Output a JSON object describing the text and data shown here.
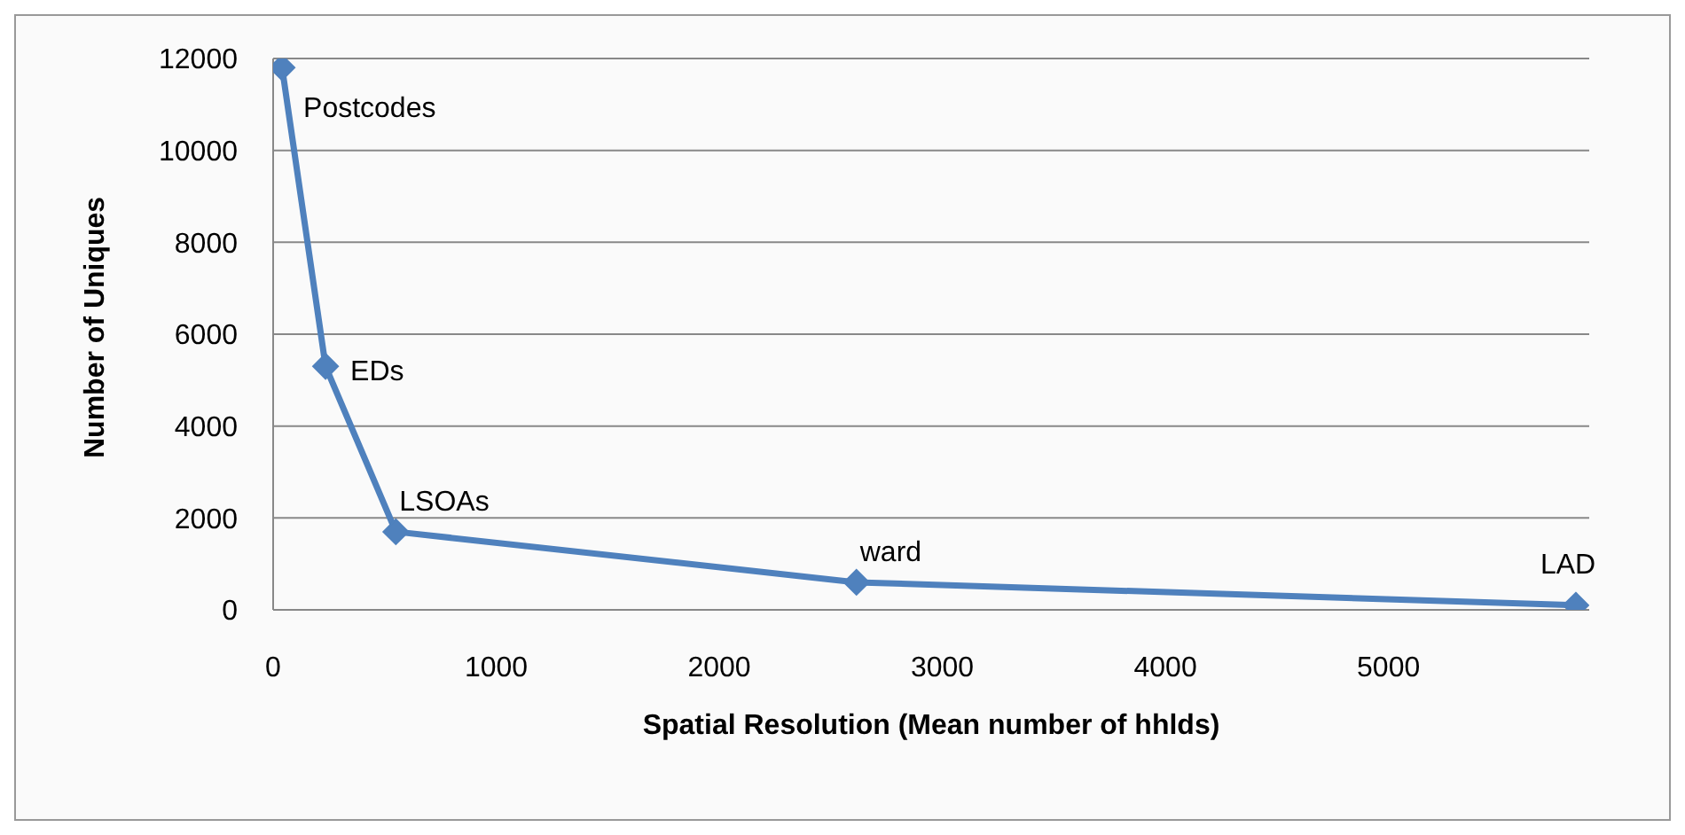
{
  "chart_data": {
    "type": "line",
    "xlabel": "Spatial Resolution (Mean number of hhlds)",
    "ylabel": "Number of Uniques",
    "x": [
      40,
      235,
      550,
      2615,
      5840
    ],
    "series": [
      {
        "color": "#4f81bd",
        "values": [
          11800,
          5300,
          1700,
          600,
          100
        ]
      }
    ],
    "xlim": [
      0,
      5900
    ],
    "xticks": [
      0,
      1000,
      2000,
      3000,
      4000,
      5000
    ],
    "ylim": [
      0,
      12000
    ],
    "yticks": [
      0,
      2000,
      4000,
      6000,
      8000,
      10000,
      12000
    ],
    "grid": "y",
    "legend": false,
    "marker": "diamond",
    "line_style": "solid",
    "annotations": [
      {
        "text": "Postcodes",
        "x": 40,
        "y": 11800
      },
      {
        "text": "EDs",
        "x": 235,
        "y": 5300
      },
      {
        "text": "LSOAs",
        "x": 550,
        "y": 1700
      },
      {
        "text": "ward",
        "x": 2615,
        "y": 600
      },
      {
        "text": "LAD",
        "x": 5840,
        "y": 100
      }
    ]
  }
}
